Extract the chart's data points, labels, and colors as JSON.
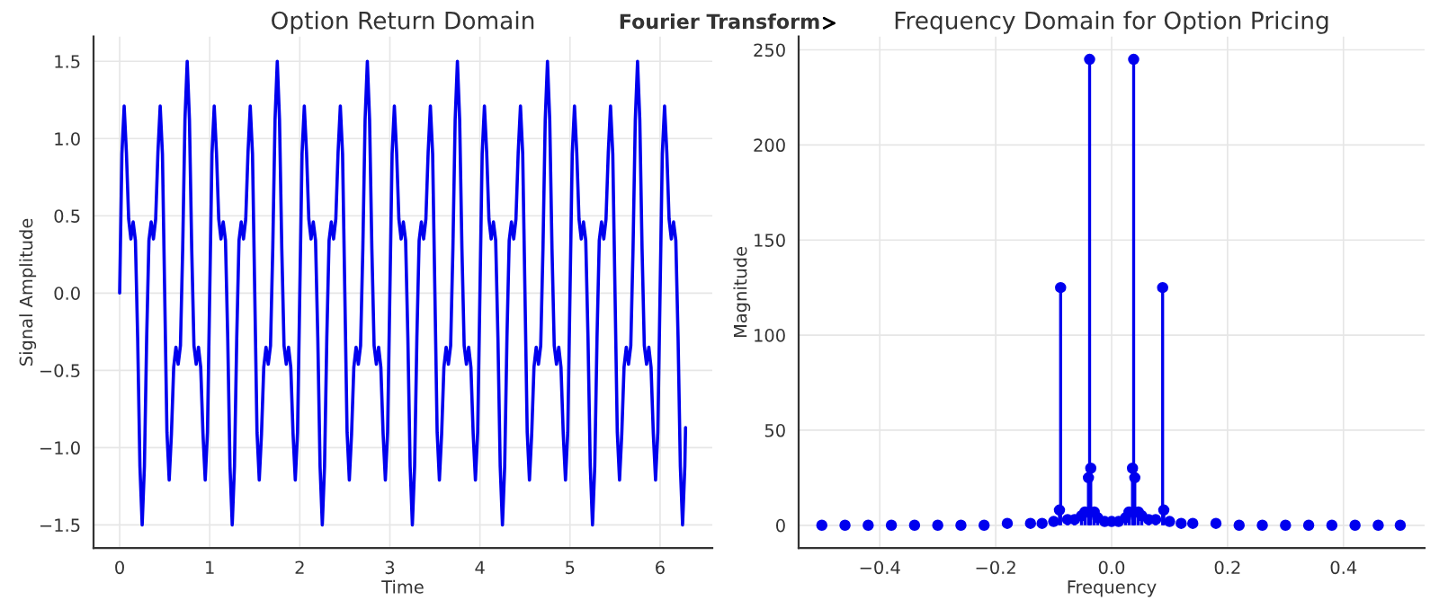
{
  "chart_data": [
    {
      "type": "line",
      "title": "Option Return Domain",
      "xlabel": "Time",
      "ylabel": "Signal Amplitude",
      "annotations": [
        "Fourier Transform"
      ],
      "xlim": [
        -0.29,
        6.58
      ],
      "ylim": [
        -1.65,
        1.66
      ],
      "xticks": [
        0,
        1,
        2,
        3,
        4,
        5,
        6
      ],
      "yticks": [
        {
          "value": -1.5,
          "label": "−1.5"
        },
        {
          "value": -1.0,
          "label": "−1.0"
        },
        {
          "value": -0.5,
          "label": "−0.5"
        },
        {
          "value": 0,
          "label": "0.0"
        },
        {
          "value": 0.5,
          "label": "0.5"
        },
        {
          "value": 1.0,
          "label": "1.0"
        },
        {
          "value": 1.5,
          "label": "1.5"
        }
      ],
      "grid": true,
      "marker": "none",
      "line_style": "solid",
      "series": [
        {
          "color": "#0000ee",
          "x": [
            0,
            0.025,
            0.05,
            0.075,
            0.1,
            0.125,
            0.15,
            0.175,
            0.2,
            0.225,
            0.25,
            0.275,
            0.3,
            0.325,
            0.35,
            0.375,
            0.4,
            0.425,
            0.45,
            0.475,
            0.5,
            0.525,
            0.55,
            0.575,
            0.6,
            0.625,
            0.65,
            0.675,
            0.7,
            0.725,
            0.75,
            0.775,
            0.8,
            0.825,
            0.85,
            0.875,
            0.9,
            0.925,
            0.95,
            0.975,
            1,
            1.025,
            1.05,
            1.075,
            1.1,
            1.125,
            1.15,
            1.175,
            1.2,
            1.225,
            1.25,
            1.275,
            1.3,
            1.325,
            1.35,
            1.375,
            1.4,
            1.425,
            1.45,
            1.475,
            1.5,
            1.525,
            1.55,
            1.575,
            1.6,
            1.625,
            1.65,
            1.675,
            1.7,
            1.725,
            1.75,
            1.775,
            1.8,
            1.825,
            1.85,
            1.875,
            1.9,
            1.925,
            1.95,
            1.975,
            2,
            2.025,
            2.05,
            2.075,
            2.1,
            2.125,
            2.15,
            2.175,
            2.2,
            2.225,
            2.25,
            2.275,
            2.3,
            2.325,
            2.35,
            2.375,
            2.4,
            2.425,
            2.45,
            2.475,
            2.5,
            2.525,
            2.55,
            2.575,
            2.6,
            2.625,
            2.65,
            2.675,
            2.7,
            2.725,
            2.75,
            2.775,
            2.8,
            2.825,
            2.85,
            2.875,
            2.9,
            2.925,
            2.95,
            2.975,
            3,
            3.025,
            3.05,
            3.075,
            3.1,
            3.125,
            3.15,
            3.175,
            3.2,
            3.225,
            3.25,
            3.275,
            3.3,
            3.325,
            3.35,
            3.375,
            3.4,
            3.425,
            3.45,
            3.475,
            3.5,
            3.525,
            3.55,
            3.575,
            3.6,
            3.625,
            3.65,
            3.675,
            3.7,
            3.725,
            3.75,
            3.775,
            3.8,
            3.825,
            3.85,
            3.875,
            3.9,
            3.925,
            3.95,
            3.975,
            4,
            4.025,
            4.05,
            4.075,
            4.1,
            4.125,
            4.15,
            4.175,
            4.2,
            4.225,
            4.25,
            4.275,
            4.3,
            4.325,
            4.35,
            4.375,
            4.4,
            4.425,
            4.45,
            4.475,
            4.5,
            4.525,
            4.55,
            4.575,
            4.6,
            4.625,
            4.65,
            4.675,
            4.7,
            4.725,
            4.75,
            4.775,
            4.8,
            4.825,
            4.85,
            4.875,
            4.9,
            4.925,
            4.95,
            4.975,
            5,
            5.025,
            5.05,
            5.075,
            5.1,
            5.125,
            5.15,
            5.175,
            5.2,
            5.225,
            5.25,
            5.275,
            5.3,
            5.325,
            5.35,
            5.375,
            5.4,
            5.425,
            5.45,
            5.475,
            5.5,
            5.525,
            5.55,
            5.575,
            5.6,
            5.625,
            5.65,
            5.675,
            5.7,
            5.725,
            5.75,
            5.775,
            5.8,
            5.825,
            5.85,
            5.875,
            5.9,
            5.925,
            5.95,
            5.975,
            6,
            6.025,
            6.05,
            6.075,
            6.1,
            6.125,
            6.15,
            6.175,
            6.2,
            6.225,
            6.25,
            6.275,
            6.283
          ],
          "values": [
            0,
            0.9,
            1.21,
            0.91,
            0.48,
            0.35,
            0.46,
            0.34,
            -0.29,
            -1.12,
            -1.5,
            -1.12,
            -0.29,
            0.34,
            0.46,
            0.35,
            0.48,
            0.91,
            1.21,
            0.9,
            0,
            -0.9,
            -1.21,
            -0.91,
            -0.48,
            -0.35,
            -0.46,
            -0.34,
            0.29,
            1.12,
            1.5,
            1.12,
            0.29,
            -0.34,
            -0.46,
            -0.35,
            -0.48,
            -0.91,
            -1.21,
            -0.9,
            0,
            0.9,
            1.21,
            0.91,
            0.48,
            0.35,
            0.46,
            0.34,
            -0.29,
            -1.12,
            -1.5,
            -1.12,
            -0.29,
            0.34,
            0.46,
            0.35,
            0.48,
            0.91,
            1.21,
            0.9,
            0,
            -0.9,
            -1.21,
            -0.91,
            -0.48,
            -0.35,
            -0.46,
            -0.34,
            0.29,
            1.12,
            1.5,
            1.12,
            0.29,
            -0.34,
            -0.46,
            -0.35,
            -0.48,
            -0.91,
            -1.21,
            -0.9,
            0,
            0.9,
            1.21,
            0.91,
            0.48,
            0.35,
            0.46,
            0.34,
            -0.29,
            -1.12,
            -1.5,
            -1.12,
            -0.29,
            0.34,
            0.46,
            0.35,
            0.48,
            0.91,
            1.21,
            0.9,
            0,
            -0.9,
            -1.21,
            -0.91,
            -0.48,
            -0.35,
            -0.46,
            -0.34,
            0.29,
            1.12,
            1.5,
            1.12,
            0.29,
            -0.34,
            -0.46,
            -0.35,
            -0.48,
            -0.91,
            -1.21,
            -0.9,
            0,
            0.9,
            1.21,
            0.91,
            0.48,
            0.35,
            0.46,
            0.34,
            -0.29,
            -1.12,
            -1.5,
            -1.12,
            -0.29,
            0.34,
            0.46,
            0.35,
            0.48,
            0.91,
            1.21,
            0.9,
            0,
            -0.9,
            -1.21,
            -0.91,
            -0.48,
            -0.35,
            -0.46,
            -0.34,
            0.29,
            1.12,
            1.5,
            1.12,
            0.29,
            -0.34,
            -0.46,
            -0.35,
            -0.48,
            -0.91,
            -1.21,
            -0.9,
            0,
            0.9,
            1.21,
            0.91,
            0.48,
            0.35,
            0.46,
            0.34,
            -0.29,
            -1.12,
            -1.5,
            -1.12,
            -0.29,
            0.34,
            0.46,
            0.35,
            0.48,
            0.91,
            1.21,
            0.9,
            0,
            -0.9,
            -1.21,
            -0.91,
            -0.48,
            -0.35,
            -0.46,
            -0.34,
            0.29,
            1.12,
            1.5,
            1.12,
            0.29,
            -0.34,
            -0.46,
            -0.35,
            -0.48,
            -0.91,
            -1.21,
            -0.9,
            0,
            0.9,
            1.21,
            0.91,
            0.48,
            0.35,
            0.46,
            0.34,
            -0.29,
            -1.12,
            -1.5,
            -1.12,
            -0.29,
            0.34,
            0.46,
            0.35,
            0.48,
            0.91,
            1.21,
            0.9,
            0,
            -0.9,
            -1.21,
            -0.91,
            -0.48,
            -0.35,
            -0.46,
            -0.34,
            0.29,
            1.12,
            1.5,
            1.12,
            0.29,
            -0.34,
            -0.46,
            -0.35,
            -0.48,
            -0.91,
            -1.21,
            -0.9,
            0,
            0.9,
            1.21,
            0.91,
            0.48,
            0.35,
            0.46,
            0.34,
            -0.29,
            -1.12,
            -1.5,
            -1.12,
            -0.87
          ]
        }
      ]
    },
    {
      "type": "lollipop",
      "title": "Frequency Domain for Option Pricing",
      "xlabel": "Frequency",
      "ylabel": "Magnitude",
      "xlim": [
        -0.54,
        0.54
      ],
      "ylim": [
        -12,
        257
      ],
      "xticks": [
        {
          "value": -0.4,
          "label": "−0.4"
        },
        {
          "value": -0.2,
          "label": "−0.2"
        },
        {
          "value": 0,
          "label": "0.0"
        },
        {
          "value": 0.2,
          "label": "0.2"
        },
        {
          "value": 0.4,
          "label": "0.4"
        }
      ],
      "yticks": [
        0,
        50,
        100,
        150,
        200,
        250
      ],
      "grid": true,
      "marker": "circle",
      "series": [
        {
          "color": "#0000ee",
          "x": [
            -0.5,
            -0.46,
            -0.42,
            -0.38,
            -0.34,
            -0.3,
            -0.26,
            -0.22,
            -0.18,
            -0.14,
            -0.12,
            -0.1,
            -0.09,
            -0.088,
            -0.076,
            -0.064,
            -0.052,
            -0.046,
            -0.04,
            -0.038,
            -0.036,
            -0.03,
            -0.024,
            -0.012,
            0,
            0.012,
            0.024,
            0.03,
            0.036,
            0.038,
            0.04,
            0.046,
            0.052,
            0.064,
            0.076,
            0.088,
            0.09,
            0.1,
            0.12,
            0.14,
            0.18,
            0.22,
            0.26,
            0.3,
            0.34,
            0.38,
            0.42,
            0.46,
            0.498
          ],
          "values": [
            0,
            0,
            0,
            0,
            0,
            0,
            0,
            0,
            1,
            1,
            1,
            2,
            8,
            125,
            3,
            3,
            5,
            7,
            25,
            245,
            30,
            7,
            4,
            2,
            2,
            2,
            4,
            7,
            30,
            245,
            25,
            7,
            5,
            3,
            3,
            125,
            8,
            2,
            1,
            1,
            1,
            0,
            0,
            0,
            0,
            0,
            0,
            0,
            0
          ]
        }
      ]
    }
  ]
}
